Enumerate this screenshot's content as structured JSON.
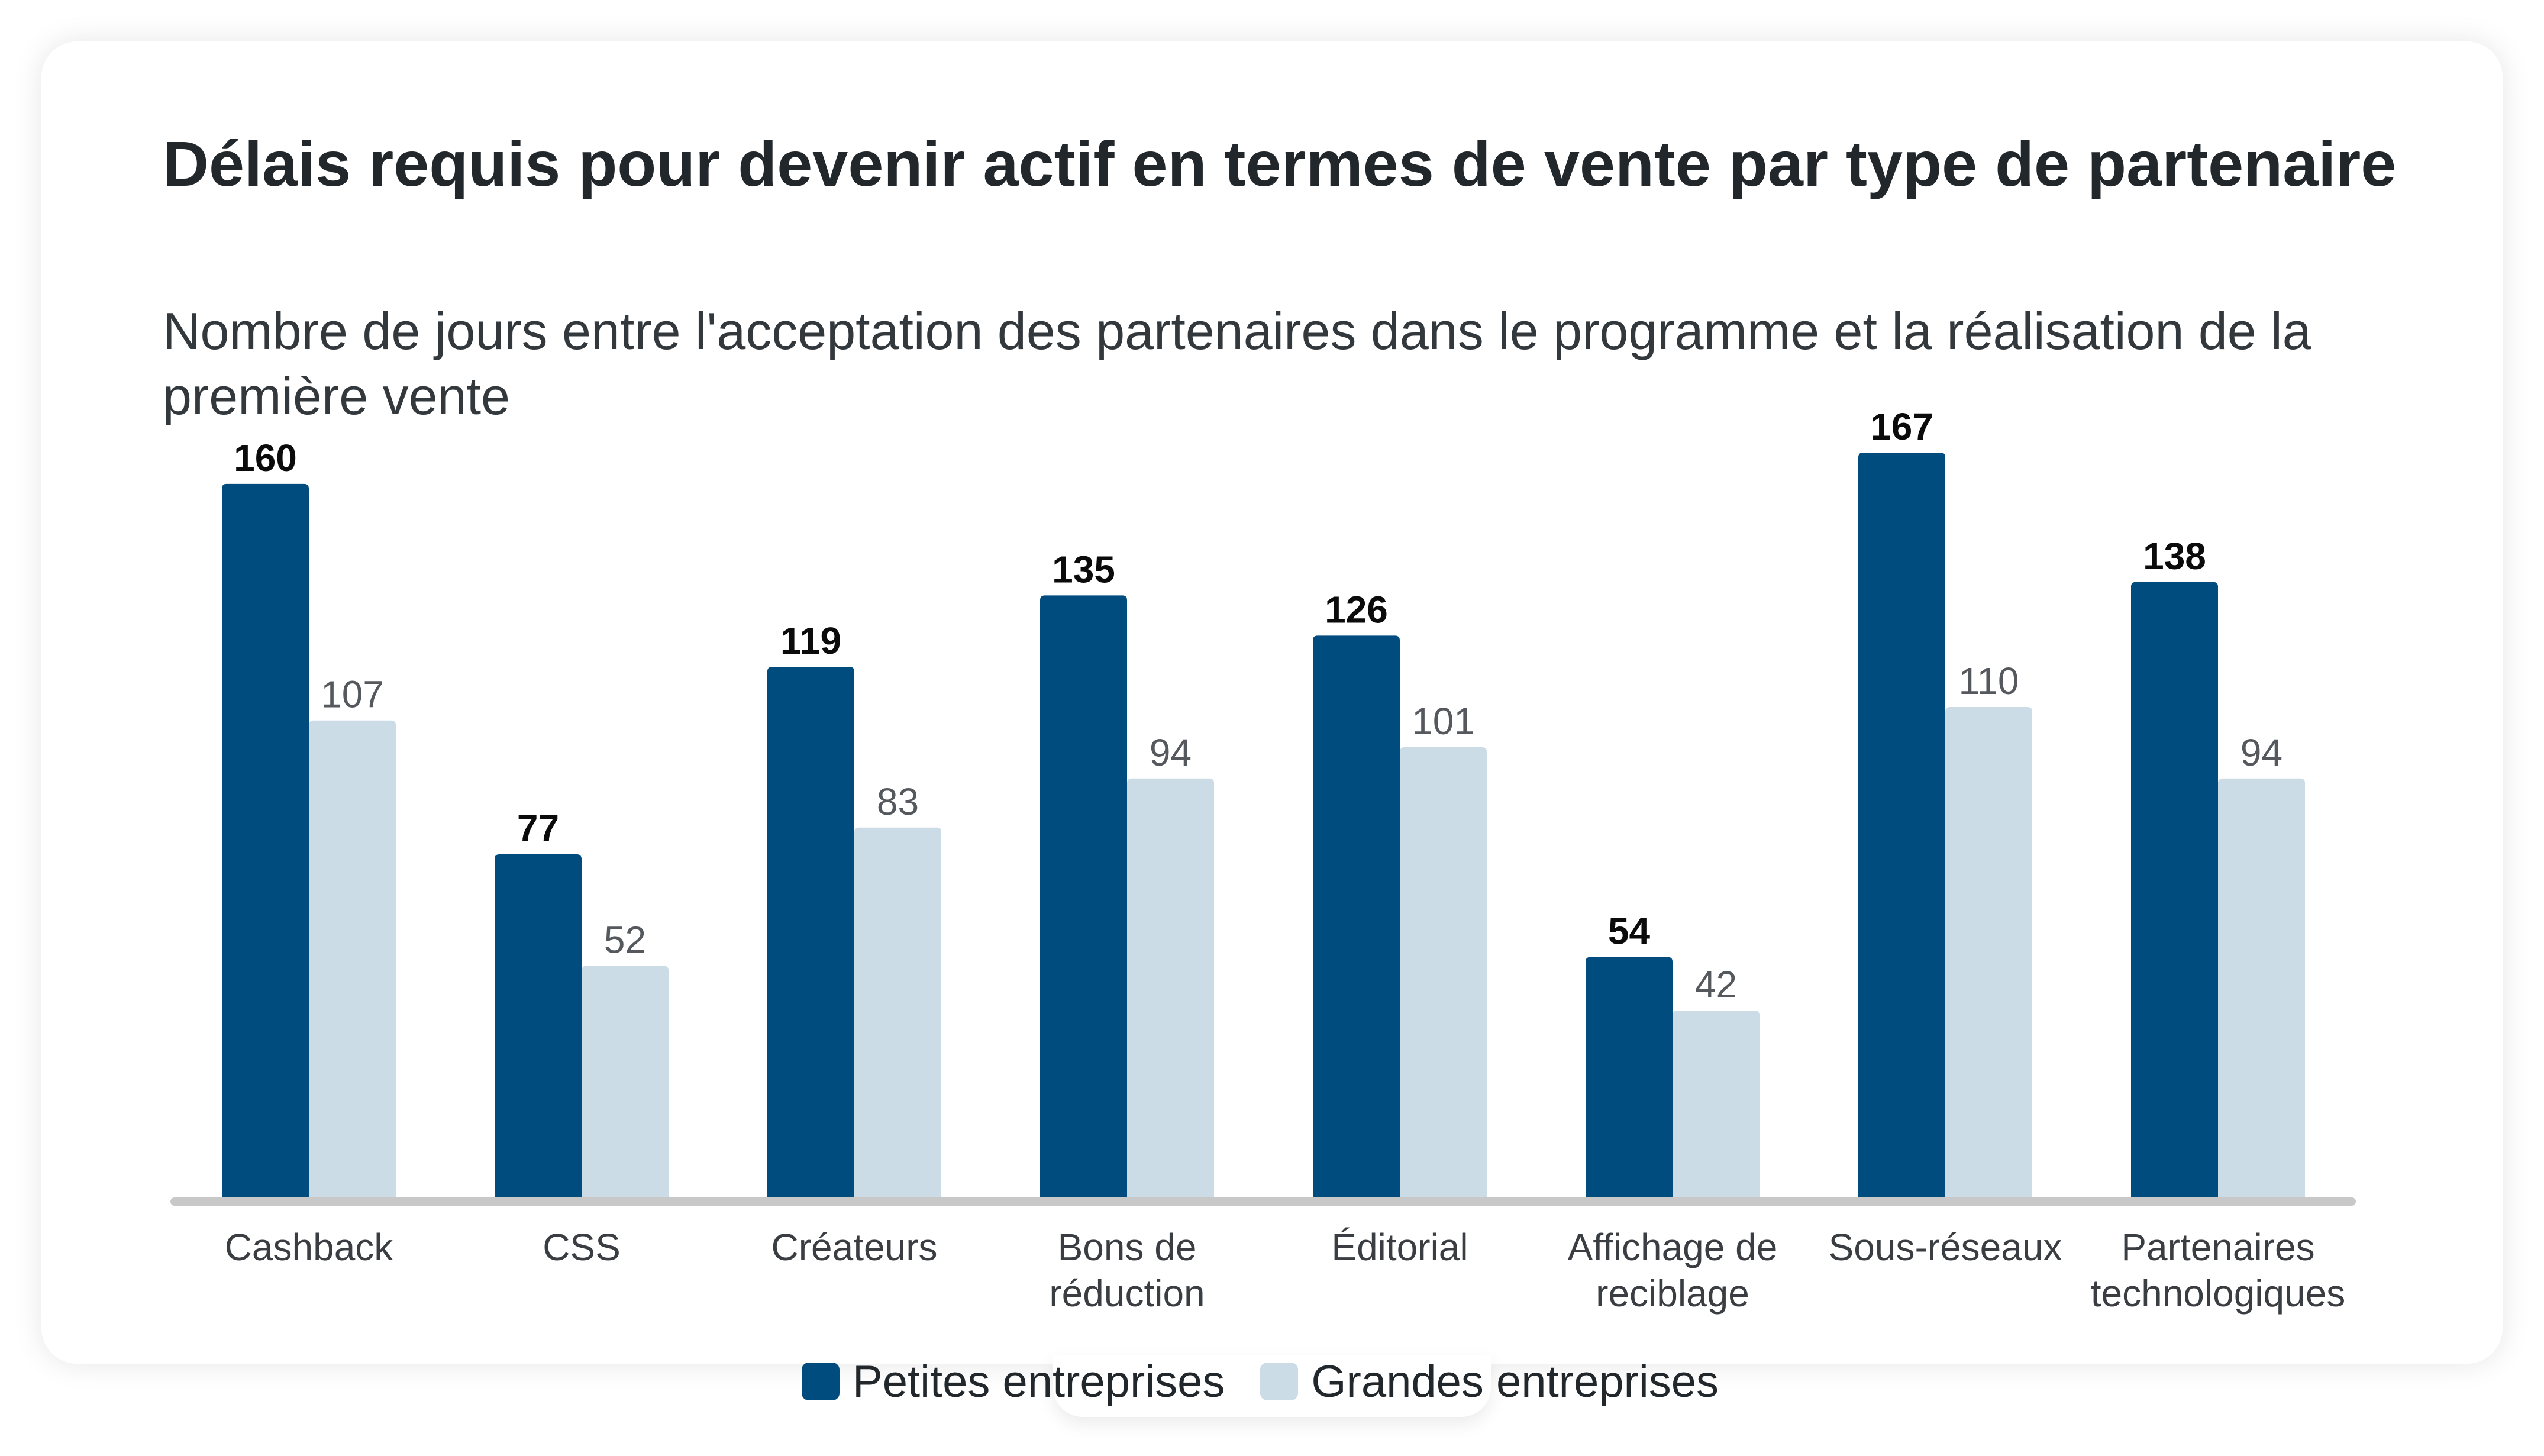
{
  "title": "Délais requis pour devenir actif en termes de vente par type de partenaire",
  "subtitle": "Nombre de jours entre l'acceptation des partenaires dans le programme et la réalisation de la première vente",
  "colors": {
    "small": "#004c7f",
    "large": "#ccdce6",
    "axis": "#c8c8c8",
    "label_dark": "#0b0b0b",
    "label_light": "#55595d",
    "category_text": "#3a3e42"
  },
  "legend": [
    {
      "name": "Petites entreprises",
      "color": "#004c7f"
    },
    {
      "name": "Grandes entreprises",
      "color": "#ccdce6"
    }
  ],
  "chart_data": {
    "type": "bar",
    "title": "Délais requis pour devenir actif en termes de vente par type de partenaire",
    "subtitle": "Nombre de jours entre l'acceptation des partenaires dans le programme et la réalisation de la première vente",
    "categories": [
      "Cashback",
      "CSS",
      "Créateurs",
      "Bons de réduction",
      "Éditorial",
      "Affichage de reciblage",
      "Sous-réseaux",
      "Partenaires technologiques"
    ],
    "category_lines": [
      [
        "Cashback"
      ],
      [
        "CSS"
      ],
      [
        "Créateurs"
      ],
      [
        "Bons de",
        "réduction"
      ],
      [
        "Éditorial"
      ],
      [
        "Affichage de",
        "reciblage"
      ],
      [
        "Sous-réseaux"
      ],
      [
        "Partenaires",
        "technologiques"
      ]
    ],
    "series": [
      {
        "name": "Petites entreprises",
        "values": [
          160,
          77,
          119,
          135,
          126,
          54,
          167,
          138
        ]
      },
      {
        "name": "Grandes entreprises",
        "values": [
          107,
          52,
          83,
          94,
          101,
          42,
          110,
          94
        ]
      }
    ],
    "xlabel": "",
    "ylabel": "",
    "ylim": [
      0,
      167
    ],
    "grid": false,
    "legend_position": "bottom-center",
    "data_labels": true
  }
}
